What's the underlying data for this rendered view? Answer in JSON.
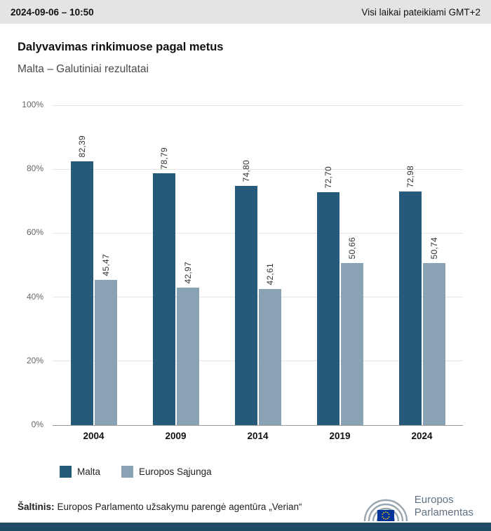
{
  "header": {
    "datetime": "2024-09-06 – 10:50",
    "timezone_note": "Visi laikai pateikiami GMT+2"
  },
  "title": "Dalyvavimas rinkimuose pagal metus",
  "subtitle": "Malta – Galutiniai rezultatai",
  "chart_data": {
    "type": "bar",
    "categories": [
      "2004",
      "2009",
      "2014",
      "2019",
      "2024"
    ],
    "series": [
      {
        "name": "Malta",
        "color": "#265a7a",
        "values": [
          82.39,
          78.79,
          74.8,
          72.7,
          72.98
        ],
        "labels": [
          "82,39",
          "78,79",
          "74,80",
          "72,70",
          "72,98"
        ]
      },
      {
        "name": "Europos Sąjunga",
        "color": "#89a3b4",
        "values": [
          45.47,
          42.97,
          42.61,
          50.66,
          50.74
        ],
        "labels": [
          "45,47",
          "42,97",
          "42,61",
          "50,66",
          "50,74"
        ]
      }
    ],
    "ylim": [
      0,
      100
    ],
    "yticks": [
      "100%",
      "80%",
      "60%",
      "40%",
      "20%",
      "0%"
    ],
    "grid": true,
    "legend_position": "bottom-left"
  },
  "footer": {
    "source_label": "Šaltinis:",
    "source_text": "Europos Parlamento užsakymu parengė agentūra „Verian“",
    "logo_line1": "Europos",
    "logo_line2": "Parlamentas"
  },
  "colors": {
    "topbar_bg": "#e4e4e4",
    "malta": "#265a7a",
    "eu": "#89a3b4",
    "bottom_strip": "#1f4b67"
  }
}
